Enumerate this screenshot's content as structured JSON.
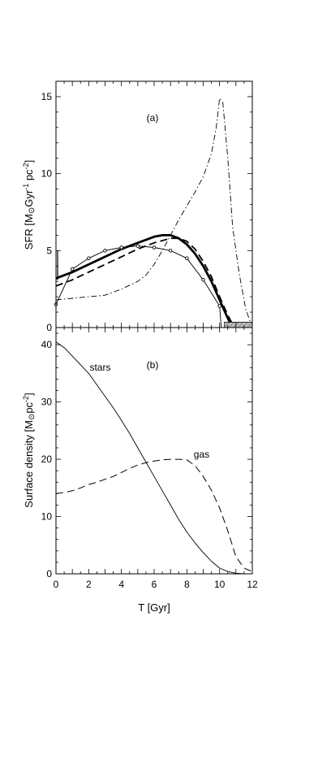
{
  "chart_data": [
    {
      "type": "line",
      "panel_label": "(a)",
      "ylabel_parts": [
        "SFR  [M",
        "⊙",
        "Gyr",
        "-1",
        " pc",
        "-2",
        "]"
      ],
      "xlim": [
        0,
        12
      ],
      "ylim": [
        0,
        16
      ],
      "yticks": [
        0,
        5,
        10,
        15
      ],
      "grid": false,
      "series": [
        {
          "style": "thick-solid",
          "x": [
            0,
            1,
            2,
            3,
            4,
            5,
            6,
            6.5,
            7,
            7.5,
            8,
            8.5,
            9,
            9.5,
            10,
            10.5,
            10.8
          ],
          "y": [
            3.2,
            3.6,
            4.1,
            4.6,
            5.1,
            5.5,
            5.9,
            6.0,
            6.0,
            5.8,
            5.4,
            4.8,
            4.0,
            3.0,
            1.8,
            0.6,
            0.0
          ]
        },
        {
          "style": "thick-dashed",
          "x": [
            0,
            1,
            2,
            3,
            4,
            5,
            6,
            7,
            7.5,
            8,
            8.5,
            9,
            9.5,
            10,
            10.5,
            10.9
          ],
          "y": [
            2.7,
            3.1,
            3.6,
            4.1,
            4.6,
            5.1,
            5.5,
            5.8,
            5.8,
            5.6,
            5.1,
            4.3,
            3.3,
            2.0,
            0.8,
            0.0
          ]
        },
        {
          "style": "thin-dash-dot",
          "x": [
            0,
            1,
            2,
            3,
            4,
            5,
            5.5,
            6,
            6.5,
            7,
            7.5,
            8,
            8.5,
            9,
            9.5,
            9.8,
            10,
            10.2,
            10.5,
            10.8,
            11.2,
            11.6,
            12
          ],
          "y": [
            1.8,
            1.9,
            2.0,
            2.1,
            2.5,
            3.0,
            3.4,
            4.1,
            5.0,
            6.0,
            7.0,
            7.9,
            8.8,
            9.8,
            11.3,
            13.0,
            14.9,
            14.6,
            11.0,
            6.5,
            3.5,
            1.2,
            0.0
          ]
        },
        {
          "style": "thin-solid-markers",
          "x": [
            0,
            1,
            2,
            3,
            4,
            5,
            6,
            7,
            8,
            9,
            10,
            10.1
          ],
          "y": [
            1.5,
            3.8,
            4.5,
            5.0,
            5.2,
            5.3,
            5.2,
            5.0,
            4.5,
            3.1,
            1.4,
            0.0
          ]
        }
      ],
      "extras": {
        "initial_spike": {
          "x": 0.1,
          "y_from": 3.1,
          "y_to": 5.0
        },
        "hatched_bar": {
          "x_from": 10.3,
          "x_to": 12,
          "y_from": 0,
          "y_to": 0.35
        }
      }
    },
    {
      "type": "line",
      "panel_label": "(b)",
      "ylabel_parts": [
        "Surface density  [M",
        "⊙",
        "pc",
        "-2",
        "]"
      ],
      "xlabel": "T  [Gyr]",
      "xlim": [
        0,
        12
      ],
      "ylim": [
        0,
        43
      ],
      "xticks": [
        0,
        2,
        4,
        6,
        8,
        10,
        12
      ],
      "yticks": [
        0,
        10,
        20,
        30,
        40
      ],
      "grid": false,
      "series": [
        {
          "name": "stars",
          "style": "thin-solid",
          "x": [
            0,
            0.5,
            1,
            1.5,
            2,
            2.5,
            3,
            3.5,
            4,
            4.5,
            5,
            5.5,
            6,
            6.5,
            7,
            7.5,
            8,
            8.5,
            9,
            9.5,
            10,
            10.5,
            11,
            11.5,
            12
          ],
          "y": [
            40.5,
            39.5,
            38.0,
            36.5,
            35.0,
            33.0,
            31.0,
            29.0,
            26.8,
            24.5,
            22.0,
            19.5,
            17.0,
            14.5,
            12.0,
            9.5,
            7.3,
            5.4,
            3.7,
            2.2,
            1.0,
            0.4,
            0.1,
            0.0,
            0.0
          ]
        },
        {
          "name": "gas",
          "style": "thin-dashed",
          "x": [
            0,
            0.5,
            1,
            1.5,
            2,
            2.5,
            3,
            3.5,
            4,
            4.5,
            5,
            5.5,
            6,
            6.5,
            7,
            7.5,
            8,
            8.5,
            9,
            9.5,
            10,
            10.5,
            11,
            11.5,
            12
          ],
          "y": [
            14.0,
            14.2,
            14.5,
            15.0,
            15.6,
            16.0,
            16.5,
            17.0,
            17.7,
            18.4,
            19.0,
            19.4,
            19.7,
            19.9,
            20.0,
            20.0,
            19.9,
            18.9,
            17.0,
            14.6,
            11.5,
            7.5,
            3.0,
            1.0,
            0.4
          ]
        }
      ],
      "labels": [
        {
          "text": "stars",
          "x": 2.7,
          "y": 35.5
        },
        {
          "text": "gas",
          "x": 8.9,
          "y": 20.3
        }
      ]
    }
  ]
}
